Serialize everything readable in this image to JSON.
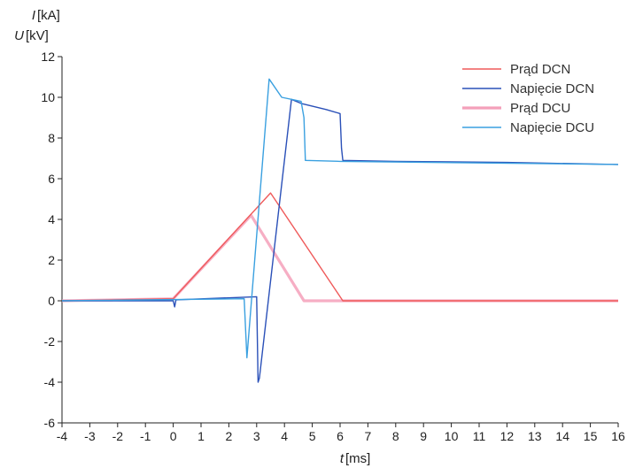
{
  "chart_data": {
    "type": "line",
    "title": "",
    "ylabel": {
      "line1": {
        "var": "I",
        "unit": "[kA]"
      },
      "line2": {
        "var": "U",
        "unit": "[kV]"
      }
    },
    "xlabel": {
      "var": "t",
      "unit": "[ms]"
    },
    "xlim": [
      -4,
      16
    ],
    "ylim": [
      -6,
      12
    ],
    "xticks": [
      "-4",
      "-3",
      "-2",
      "-1",
      "0",
      "1",
      "2",
      "3",
      "4",
      "5",
      "6",
      "7",
      "8",
      "9",
      "10",
      "11",
      "12",
      "13",
      "14",
      "15",
      "16"
    ],
    "yticks": [
      "-6",
      "-4",
      "-2",
      "0",
      "2",
      "4",
      "6",
      "8",
      "10",
      "12"
    ],
    "grid": false,
    "legend_position": "top-right",
    "series": [
      {
        "name": "Prąd DCN",
        "color": "#ef5a5a",
        "style": "thin",
        "x": [
          -4,
          0,
          3.5,
          6.1,
          16
        ],
        "y": [
          0,
          0.1,
          5.3,
          0,
          0
        ]
      },
      {
        "name": "Napięcie DCN",
        "color": "#2a50b8",
        "style": "thin",
        "x": [
          -4,
          0,
          0.05,
          0.1,
          3.0,
          3.05,
          3.1,
          4.25,
          4.6,
          5.5,
          6.0,
          6.05,
          6.1,
          8,
          12,
          16
        ],
        "y": [
          0,
          0,
          -0.3,
          0.05,
          0.2,
          -4.0,
          -3.8,
          9.9,
          9.7,
          9.4,
          9.2,
          7.5,
          6.9,
          6.85,
          6.8,
          6.7
        ]
      },
      {
        "name": "Prąd DCU",
        "color": "#f4a0ba",
        "style": "thick",
        "x": [
          -4,
          0,
          2.8,
          4.7,
          16
        ],
        "y": [
          0,
          0.1,
          4.2,
          0,
          0
        ]
      },
      {
        "name": "Napięcie DCU",
        "color": "#3aa0e0",
        "style": "thin",
        "x": [
          -4,
          2.55,
          2.65,
          3.45,
          3.9,
          4.6,
          4.7,
          4.75,
          6,
          16
        ],
        "y": [
          0,
          0.1,
          -2.8,
          10.9,
          10.0,
          9.8,
          9.0,
          6.9,
          6.85,
          6.7
        ]
      }
    ]
  }
}
